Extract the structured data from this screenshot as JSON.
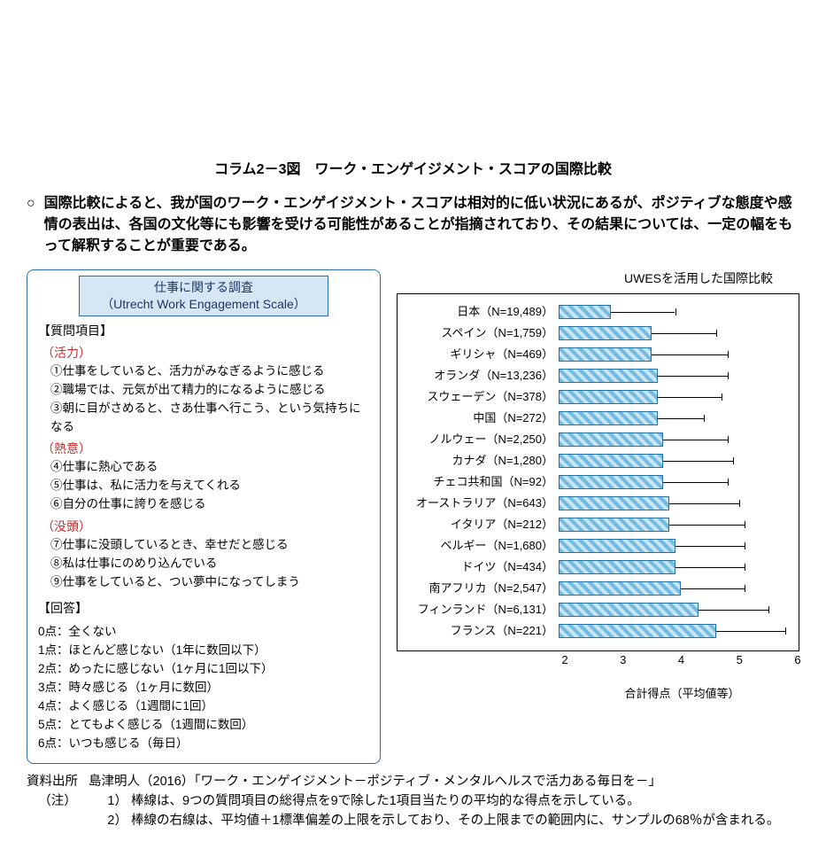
{
  "title": "コラム2－3図　ワーク・エンゲイジメント・スコアの国際比較",
  "summary": {
    "bullet": "○",
    "text": "国際比較によると、我が国のワーク・エンゲイジメント・スコアは相対的に低い状況にあるが、ポジティブな態度や感情の表出は、各国の文化等にも影響を受ける可能性があることが指摘されており、その結果については、一定の幅をもって解釈することが重要である。"
  },
  "survey_box": {
    "badge_line1": "仕事に関する調査",
    "badge_line2": "（Utrecht Work Engagement Scale）",
    "q_head": "【質問項目】",
    "cat1": "（活力）",
    "q1": "①仕事をしていると、活力がみなぎるように感じる",
    "q2": "②職場では、元気が出て精力的になるように感じる",
    "q3": "③朝に目がさめると、さあ仕事へ行こう、という気持ちになる",
    "cat2": "（熱意）",
    "q4": "④仕事に熱心である",
    "q5": "⑤仕事は、私に活力を与えてくれる",
    "q6": "⑥自分の仕事に誇りを感じる",
    "cat3": "（没頭）",
    "q7": "⑦仕事に没頭しているとき、幸せだと感じる",
    "q8": "⑧私は仕事にのめり込んでいる",
    "q9": "⑨仕事をしていると、つい夢中になってしまう",
    "a_head": "【回答】",
    "a0": "0点：全くない",
    "a1": "1点：ほとんど感じない（1年に数回以下）",
    "a2": "2点：めったに感じない（1ヶ月に1回以下）",
    "a3": "3点：時々感じる（1ヶ月に数回）",
    "a4": "4点：よく感じる（1週間に1回）",
    "a5": "5点：とてもよく感じる（1週間に数回）",
    "a6": "6点：いつも感じる（毎日）"
  },
  "chart": {
    "title": "UWESを活用した国際比較",
    "type": "bar",
    "xlim_min": 2,
    "xlim_max": 6,
    "x_ticks": [
      2,
      3,
      4,
      5,
      6
    ],
    "x_label": "合計得点（平均値等）",
    "bar_border": "#1a6aa0",
    "bar_fill_a": "#6db8e0",
    "bar_fill_b": "#c5e4f5",
    "rows": [
      {
        "label": "日本（N=19,489）",
        "value": 2.9,
        "err_end": 4.0
      },
      {
        "label": "スペイン（N=1,759）",
        "value": 3.6,
        "err_end": 4.7
      },
      {
        "label": "ギリシャ（N=469）",
        "value": 3.6,
        "err_end": 4.9
      },
      {
        "label": "オランダ（N=13,236）",
        "value": 3.7,
        "err_end": 4.9
      },
      {
        "label": "スウェーデン（N=378）",
        "value": 3.7,
        "err_end": 4.8
      },
      {
        "label": "中国（N=272）",
        "value": 3.7,
        "err_end": 4.5
      },
      {
        "label": "ノルウェー（N=2,250）",
        "value": 3.8,
        "err_end": 4.9
      },
      {
        "label": "カナダ（N=1,280）",
        "value": 3.8,
        "err_end": 5.0
      },
      {
        "label": "チェコ共和国（N=92）",
        "value": 3.8,
        "err_end": 4.9
      },
      {
        "label": "オーストラリア（N=643）",
        "value": 3.9,
        "err_end": 5.1
      },
      {
        "label": "イタリア（N=212）",
        "value": 3.9,
        "err_end": 5.2
      },
      {
        "label": "ベルギー（N=1,680）",
        "value": 4.0,
        "err_end": 5.2
      },
      {
        "label": "ドイツ（N=434）",
        "value": 4.0,
        "err_end": 5.2
      },
      {
        "label": "南アフリカ（N=2,547）",
        "value": 4.1,
        "err_end": 5.2
      },
      {
        "label": "フィンランド（N=6,131）",
        "value": 4.4,
        "err_end": 5.6
      },
      {
        "label": "フランス（N=221）",
        "value": 4.7,
        "err_end": 5.9
      }
    ]
  },
  "foot": {
    "src_label": "資料出所",
    "src_text": "島津明人（2016）「ワーク・エンゲイジメント－ポジティブ・メンタルヘルスで活力ある毎日を－」",
    "note_label": "（注）",
    "n1_num": "1）",
    "n1": "棒線は、9つの質問項目の総得点を9で除した1項目当たりの平均的な得点を示している。",
    "n2_num": "2）",
    "n2": "棒線の右線は、平均値＋1標準偏差の上限を示しており、その上限までの範囲内に、サンプルの68％が含まれる。"
  }
}
